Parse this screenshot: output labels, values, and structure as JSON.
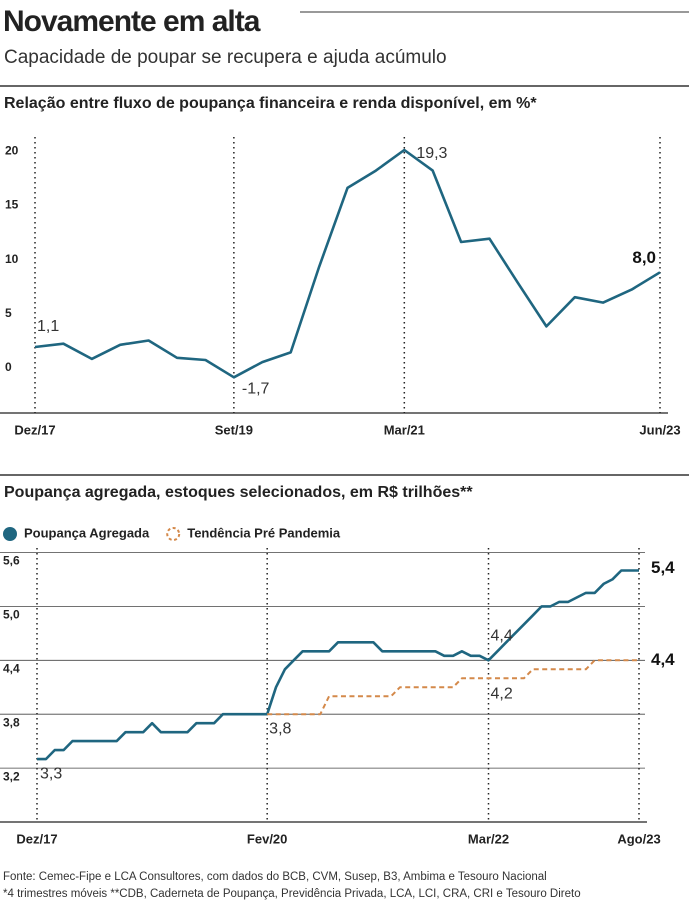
{
  "title": "Novamente em alta",
  "subtitle": "Capacidade de poupar se recupera e ajuda acúmulo",
  "notes": [
    "Fonte: Cemec-Fipe e LCA Consultores, com dados do BCB, CVM, Susep, B3, Ambima e Tesouro Nacional",
    "*4 trimestres móveis **CDB, Caderneta de Poupança, Previdência Privada, LCA, LCI, CRA, CRI e Tesouro Direto"
  ],
  "chart_data": [
    {
      "type": "line",
      "title": "Relação entre fluxo de poupança financeira e renda disponível, em %*",
      "categories": [
        "Dez/17",
        null,
        null,
        null,
        null,
        null,
        null,
        "Set/19",
        null,
        null,
        null,
        null,
        null,
        "Mar/21",
        null,
        null,
        null,
        null,
        null,
        null,
        null,
        null,
        "Jun/23"
      ],
      "values": [
        1.1,
        1.4,
        0.0,
        1.3,
        1.7,
        0.1,
        -0.1,
        -1.7,
        -0.3,
        0.6,
        8.5,
        15.8,
        17.4,
        19.3,
        17.4,
        10.8,
        11.1,
        7.0,
        3.0,
        5.7,
        5.2,
        6.4,
        8.0
      ],
      "value_labels": [
        "1,1",
        null,
        null,
        null,
        null,
        null,
        null,
        "-1,7",
        null,
        null,
        null,
        null,
        null,
        "19,3",
        null,
        null,
        null,
        null,
        null,
        null,
        null,
        null,
        "8,0"
      ],
      "color": "#1f6680",
      "ylim": [
        -5,
        20.5
      ],
      "yticks": [
        0,
        5,
        10,
        15,
        20
      ],
      "grid": false
    },
    {
      "type": "line",
      "title": "Poupança agregada, estoques selecionados, em R$ trilhões**",
      "categories": [
        "Dez/17",
        null,
        null,
        null,
        null,
        null,
        null,
        null,
        null,
        null,
        null,
        null,
        null,
        null,
        null,
        null,
        null,
        null,
        null,
        null,
        null,
        null,
        null,
        null,
        null,
        null,
        "Fev/20",
        null,
        null,
        null,
        null,
        null,
        null,
        null,
        null,
        null,
        null,
        null,
        null,
        null,
        null,
        null,
        null,
        null,
        null,
        null,
        null,
        null,
        null,
        null,
        null,
        "Mar/22",
        null,
        null,
        null,
        null,
        null,
        null,
        null,
        null,
        null,
        null,
        null,
        null,
        null,
        null,
        null,
        null,
        "Ago/23"
      ],
      "series": [
        {
          "name": "Poupança Agregada",
          "color": "#1f6680",
          "values": [
            3.3,
            3.3,
            3.4,
            3.4,
            3.5,
            3.5,
            3.5,
            3.5,
            3.5,
            3.5,
            3.6,
            3.6,
            3.6,
            3.7,
            3.6,
            3.6,
            3.6,
            3.6,
            3.7,
            3.7,
            3.7,
            3.8,
            3.8,
            3.8,
            3.8,
            3.8,
            3.8,
            4.1,
            4.3,
            4.4,
            4.5,
            4.5,
            4.5,
            4.5,
            4.6,
            4.6,
            4.6,
            4.6,
            4.6,
            4.5,
            4.5,
            4.5,
            4.5,
            4.5,
            4.5,
            4.5,
            4.45,
            4.45,
            4.5,
            4.45,
            4.45,
            4.4,
            4.5,
            4.6,
            4.7,
            4.8,
            4.9,
            5.0,
            5.0,
            5.05,
            5.05,
            5.1,
            5.15,
            5.15,
            5.25,
            5.3,
            5.4,
            5.4,
            5.4
          ],
          "value_labels": [
            "3,3",
            null,
            null,
            null,
            null,
            null,
            null,
            null,
            null,
            null,
            null,
            null,
            null,
            null,
            null,
            null,
            null,
            null,
            null,
            null,
            null,
            null,
            null,
            null,
            null,
            null,
            "3,8",
            null,
            null,
            null,
            null,
            null,
            null,
            null,
            null,
            null,
            null,
            null,
            null,
            null,
            null,
            null,
            null,
            null,
            null,
            null,
            null,
            null,
            null,
            null,
            null,
            "4,4",
            null,
            null,
            null,
            null,
            null,
            null,
            null,
            null,
            null,
            null,
            null,
            null,
            null,
            null,
            null,
            null,
            "5,4"
          ]
        },
        {
          "name": "Tendência Pré Pandemia",
          "color": "#d4894a",
          "dashed": true,
          "values": [
            null,
            null,
            null,
            null,
            null,
            null,
            null,
            null,
            null,
            null,
            null,
            null,
            null,
            null,
            null,
            null,
            null,
            null,
            null,
            null,
            null,
            null,
            null,
            null,
            null,
            null,
            3.8,
            3.8,
            3.8,
            3.8,
            3.8,
            3.8,
            3.8,
            4.0,
            4.0,
            4.0,
            4.0,
            4.0,
            4.0,
            4.0,
            4.0,
            4.1,
            4.1,
            4.1,
            4.1,
            4.1,
            4.1,
            4.1,
            4.2,
            4.2,
            4.2,
            4.2,
            4.2,
            4.2,
            4.2,
            4.2,
            4.3,
            4.3,
            4.3,
            4.3,
            4.3,
            4.3,
            4.3,
            4.4,
            4.4,
            4.4,
            4.4,
            4.4,
            4.4
          ],
          "value_labels": [
            null,
            null,
            null,
            null,
            null,
            null,
            null,
            null,
            null,
            null,
            null,
            null,
            null,
            null,
            null,
            null,
            null,
            null,
            null,
            null,
            null,
            null,
            null,
            null,
            null,
            null,
            null,
            null,
            null,
            null,
            null,
            null,
            null,
            null,
            null,
            null,
            null,
            null,
            null,
            null,
            null,
            null,
            null,
            null,
            null,
            null,
            null,
            null,
            null,
            null,
            null,
            "4,2",
            null,
            null,
            null,
            null,
            null,
            null,
            null,
            null,
            null,
            null,
            null,
            null,
            null,
            null,
            null,
            null,
            "4,4"
          ]
        }
      ],
      "ylim": [
        2.6,
        5.65
      ],
      "yticks": [
        {
          "value": 3.2,
          "label": "3,2"
        },
        {
          "value": 3.8,
          "label": "3,8"
        },
        {
          "value": 4.4,
          "label": "4,4"
        },
        {
          "value": 5.0,
          "label": "5,0"
        },
        {
          "value": 5.6,
          "label": "5,6"
        }
      ],
      "grid": true
    }
  ]
}
